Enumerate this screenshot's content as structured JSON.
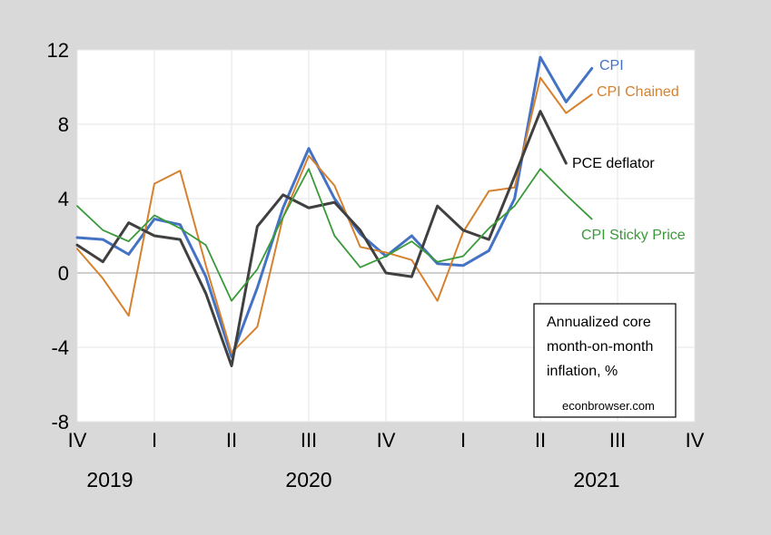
{
  "chart_data": {
    "type": "line",
    "x_ticks": [
      "IV",
      "I",
      "II",
      "III",
      "IV",
      "I",
      "II",
      "III",
      "IV"
    ],
    "year_labels": [
      "2019",
      "2020",
      "2021"
    ],
    "ylim": [
      -8,
      12
    ],
    "y_ticks": [
      12,
      8,
      4,
      0,
      -4,
      -8
    ],
    "grid": "vertical and horizontal light gridlines",
    "series": [
      {
        "name": "CPI",
        "color": "#4472c4",
        "values": [
          1.9,
          1.8,
          1.0,
          2.9,
          2.6,
          -0.2,
          -4.5,
          -0.8,
          3.5,
          6.7,
          4.0,
          2.1,
          0.9,
          2.0,
          0.5,
          0.4,
          1.2,
          4.0,
          11.6,
          9.2,
          11.0
        ]
      },
      {
        "name": "CPI Chained",
        "color": "#d6812e",
        "values": [
          1.3,
          -0.3,
          -2.3,
          4.8,
          5.5,
          0.4,
          -4.3,
          -2.9,
          3.0,
          6.3,
          4.7,
          1.4,
          1.1,
          0.7,
          -1.5,
          2.2,
          4.4,
          4.6,
          10.5,
          8.6,
          9.6
        ]
      },
      {
        "name": "PCE deflator",
        "color": "#404040",
        "values": [
          1.5,
          0.6,
          2.7,
          2.0,
          1.8,
          -1.1,
          -5.0,
          2.5,
          4.2,
          3.5,
          3.8,
          2.3,
          0.0,
          -0.2,
          3.6,
          2.3,
          1.8,
          5.2,
          8.7,
          5.9
        ]
      },
      {
        "name": "CPI Sticky Price",
        "color": "#3a9a3a",
        "values": [
          3.6,
          2.3,
          1.7,
          3.1,
          2.4,
          1.5,
          -1.5,
          0.2,
          3.0,
          5.6,
          2.0,
          0.3,
          0.9,
          1.7,
          0.6,
          0.9,
          2.4,
          3.6,
          5.6,
          4.2,
          2.9
        ]
      }
    ],
    "annotation": {
      "lines": [
        "Annualized core",
        "month-on-month",
        "inflation, %"
      ],
      "source": "econbrowser.com"
    }
  }
}
